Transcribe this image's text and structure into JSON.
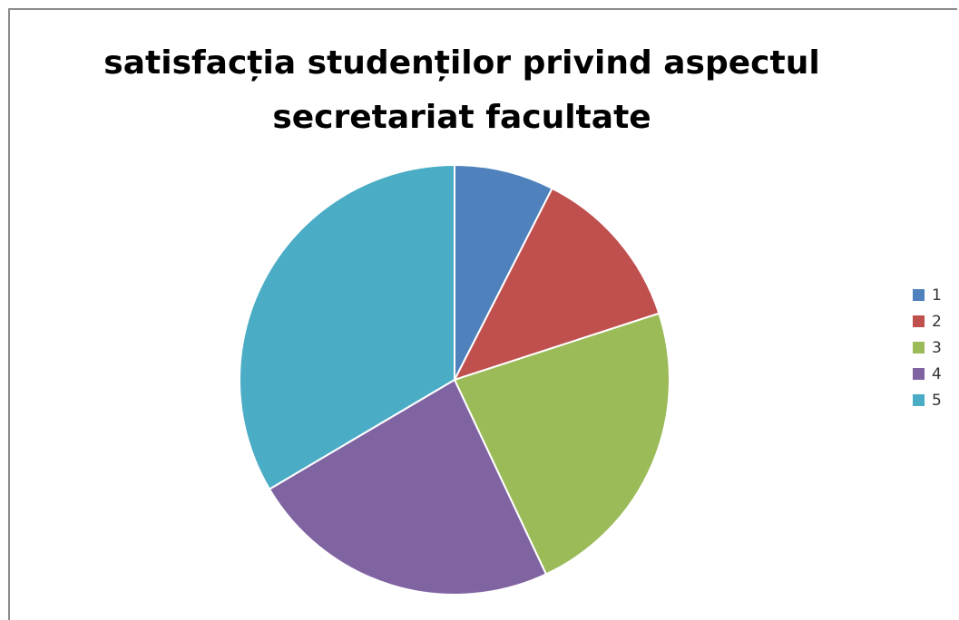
{
  "chart_data": {
    "type": "pie",
    "title": "satisfacția studenților privind aspectul secretariat facultate",
    "categories": [
      "1",
      "2",
      "3",
      "4",
      "5"
    ],
    "values": [
      7.5,
      12.5,
      23,
      23.5,
      33.5
    ],
    "colors": [
      "#4F81BD",
      "#C0504D",
      "#9BBB59",
      "#8064A2",
      "#4BACC6"
    ],
    "start_angle": "12 o'clock",
    "direction": "clockwise",
    "legend_position": "right"
  }
}
